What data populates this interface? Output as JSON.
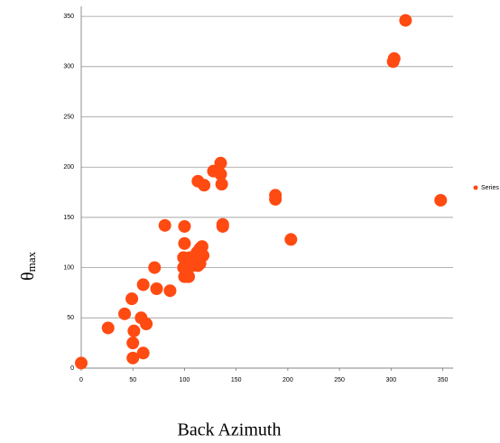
{
  "chart_data": {
    "type": "scatter",
    "xlabel": "Back Azimuth",
    "ylabel": {
      "symbol": "θ",
      "subscript": "max"
    },
    "series": [
      {
        "name": "Series",
        "color": "#ff4a12",
        "x": [
          0,
          26,
          50,
          50,
          51,
          60,
          58,
          63,
          49,
          42,
          60,
          73,
          86,
          71,
          81,
          100,
          100,
          99,
          99,
          100,
          104,
          105,
          108,
          112,
          115,
          117,
          115,
          113,
          118,
          113,
          119,
          128,
          135,
          135,
          136,
          137,
          137,
          188,
          188,
          203,
          302,
          303,
          314,
          348
        ],
        "values": [
          5,
          40,
          10,
          25,
          37,
          15,
          50,
          44,
          69,
          54,
          83,
          79,
          77,
          100,
          142,
          141,
          124,
          110,
          100,
          91,
          91,
          110,
          102,
          115,
          119,
          121,
          104,
          102,
          112,
          186,
          182,
          196,
          204,
          193,
          183,
          143,
          141,
          172,
          168,
          128,
          305,
          308,
          346,
          167
        ]
      }
    ],
    "xlim": [
      0,
      360
    ],
    "ylim": [
      0,
      360
    ],
    "xticks": [
      0,
      50,
      100,
      150,
      200,
      250,
      300,
      350
    ],
    "yticks": [
      0,
      50,
      100,
      150,
      200,
      250,
      300,
      350
    ],
    "grid": true
  }
}
